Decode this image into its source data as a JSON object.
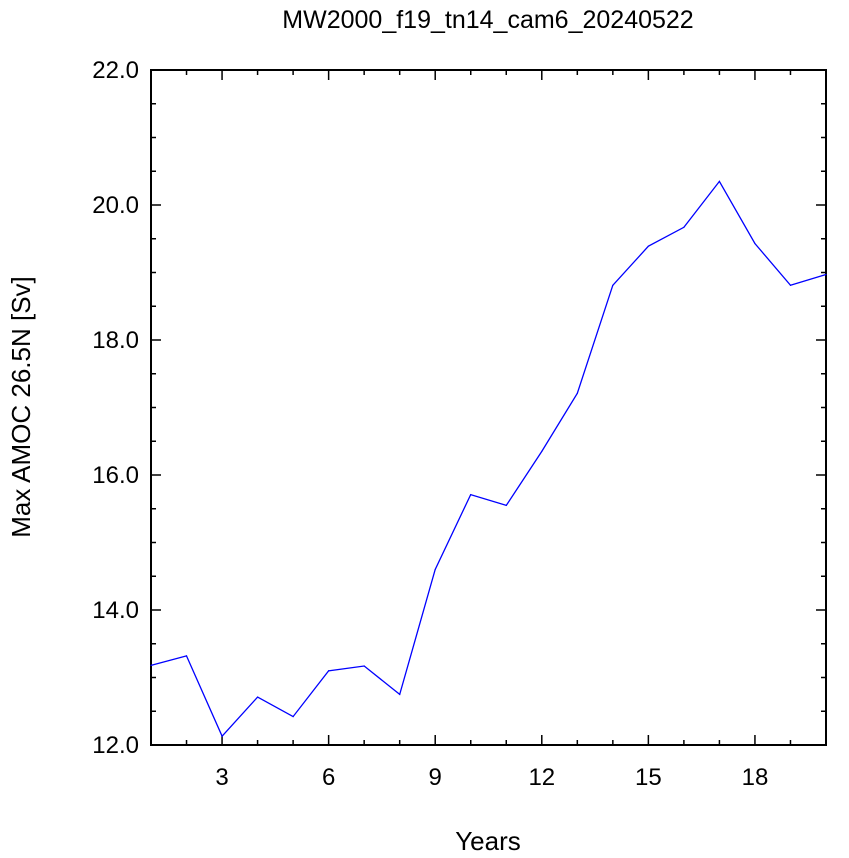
{
  "chart_data": {
    "type": "line",
    "title": "MW2000_f19_tn14_cam6_20240522",
    "xlabel": "Years",
    "ylabel": "Max AMOC 26.5N [Sv]",
    "xlim": [
      1,
      20
    ],
    "ylim": [
      12.0,
      22.0
    ],
    "x_ticks": [
      3,
      6,
      9,
      12,
      15,
      18
    ],
    "x_tick_labels": [
      "3",
      "6",
      "9",
      "12",
      "15",
      "18"
    ],
    "y_ticks": [
      12.0,
      14.0,
      16.0,
      18.0,
      20.0,
      22.0
    ],
    "y_tick_labels": [
      "12.0",
      "14.0",
      "16.0",
      "18.0",
      "20.0",
      "22.0"
    ],
    "grid": false,
    "series": [
      {
        "color": "#0000ff",
        "x": [
          1,
          2,
          3,
          4,
          5,
          6,
          7,
          8,
          9,
          10,
          11,
          12,
          13,
          14,
          15,
          16,
          17,
          18,
          19,
          20
        ],
        "y": [
          13.18,
          13.32,
          12.13,
          12.71,
          12.42,
          13.1,
          13.17,
          12.75,
          14.6,
          15.71,
          15.55,
          16.35,
          17.21,
          18.81,
          19.39,
          19.67,
          20.35,
          19.43,
          18.81,
          18.97
        ]
      }
    ]
  }
}
